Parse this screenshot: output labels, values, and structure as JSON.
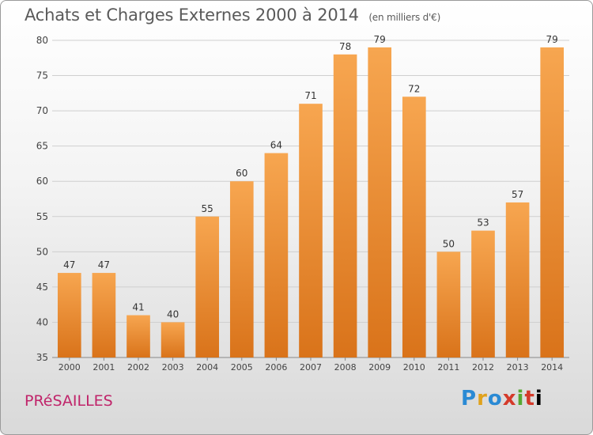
{
  "header": {
    "title": "Achats et Charges Externes 2000 à 2014",
    "unit": "(en milliers d'€)"
  },
  "footer": {
    "commune": "PRéSAILLES",
    "logo_letters": [
      "P",
      "r",
      "o",
      "x",
      "i",
      "t",
      "i"
    ]
  },
  "colors": {
    "bar_top": "#f7a650",
    "bar_bottom": "#d9731a",
    "grid": "#cfcfcf",
    "axis_text": "#444444",
    "label_text": "#333333"
  },
  "chart_data": {
    "type": "bar",
    "title": "Achats et Charges Externes 2000 à 2014",
    "subtitle": "(en milliers d'€)",
    "xlabel": "",
    "ylabel": "",
    "ylim": [
      35,
      80
    ],
    "yticks": [
      35,
      40,
      45,
      50,
      55,
      60,
      65,
      70,
      75,
      80
    ],
    "grid": true,
    "categories": [
      "2000",
      "2001",
      "2002",
      "2003",
      "2004",
      "2005",
      "2006",
      "2007",
      "2008",
      "2009",
      "2010",
      "2011",
      "2012",
      "2013",
      "2014"
    ],
    "values": [
      47,
      47,
      41,
      40,
      55,
      60,
      64,
      71,
      78,
      79,
      72,
      50,
      53,
      57,
      79
    ]
  }
}
